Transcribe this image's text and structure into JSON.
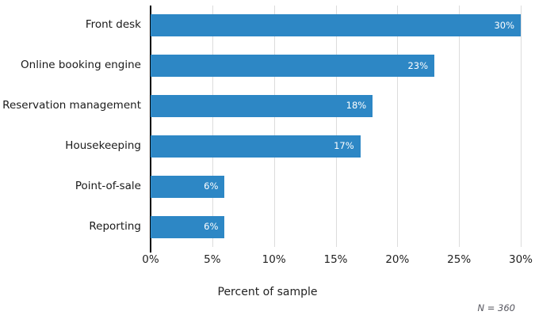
{
  "chart_data": {
    "type": "bar",
    "orientation": "horizontal",
    "title": "",
    "categories": [
      "Front desk",
      "Online booking engine",
      "Reservation management",
      "Housekeeping",
      "Point-of-sale",
      "Reporting"
    ],
    "values": [
      30,
      23,
      18,
      17,
      6,
      6
    ],
    "value_labels": [
      "30%",
      "23%",
      "18%",
      "17%",
      "6%",
      "6%"
    ],
    "xlabel": "Percent of sample",
    "ylabel": "",
    "xlim": [
      0,
      30
    ],
    "x_tick_values": [
      0,
      5,
      10,
      15,
      20,
      25,
      30
    ],
    "x_tick_labels": [
      "0%",
      "5%",
      "10%",
      "15%",
      "20%",
      "25%",
      "30%"
    ],
    "note": "N = 360",
    "legend": null,
    "grid": "vertical-only",
    "colors": {
      "bar": "#2d87c5",
      "gridline": "#dcdcdc",
      "axis_line": "#000000",
      "bar_value_text": "#ffffff",
      "category_text": "#1a1a1a",
      "tick_text": "#222222",
      "note_text": "#55555e"
    }
  }
}
